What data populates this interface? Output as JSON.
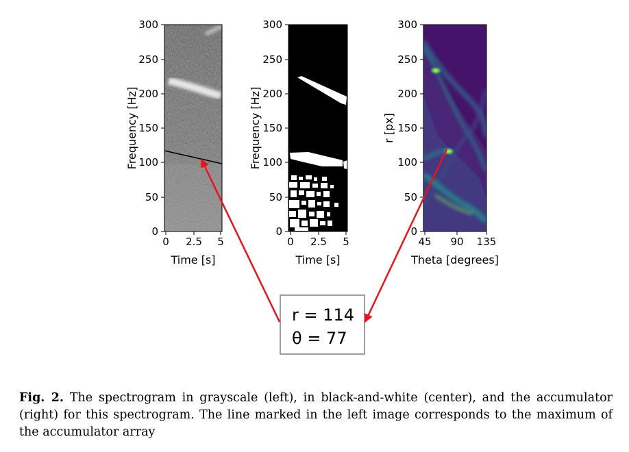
{
  "panels": {
    "left": {
      "xlabel": "Time [s]",
      "ylabel": "Frequency [Hz]",
      "xticks": [
        "0",
        "2.5",
        "5"
      ],
      "yticks": [
        "0",
        "50",
        "100",
        "150",
        "200",
        "250",
        "300"
      ]
    },
    "center": {
      "xlabel": "Time [s]",
      "ylabel": "Frequency [Hz]",
      "xticks": [
        "0",
        "2.5",
        "5"
      ],
      "yticks": [
        "0",
        "50",
        "100",
        "150",
        "200",
        "250",
        "300"
      ]
    },
    "right": {
      "xlabel": "Theta [degrees]",
      "ylabel": "r [px]",
      "xticks": [
        "45",
        "90",
        "135"
      ],
      "yticks": [
        "0",
        "50",
        "100",
        "150",
        "200",
        "250",
        "300"
      ]
    }
  },
  "result": {
    "line1": "r = 114",
    "line2": "θ = 77"
  },
  "caption": {
    "label": "Fig. 2.",
    "text": " The spectrogram in grayscale (left), in black-and-white (center), and the accumulator (right) for this spectrogram. The line marked in the left image corresponds to the maximum of the accumulator array"
  },
  "colors": {
    "arrow": "#e8141b",
    "accumulator_background": "#45136a",
    "accumulator_peak": "#fde725"
  }
}
